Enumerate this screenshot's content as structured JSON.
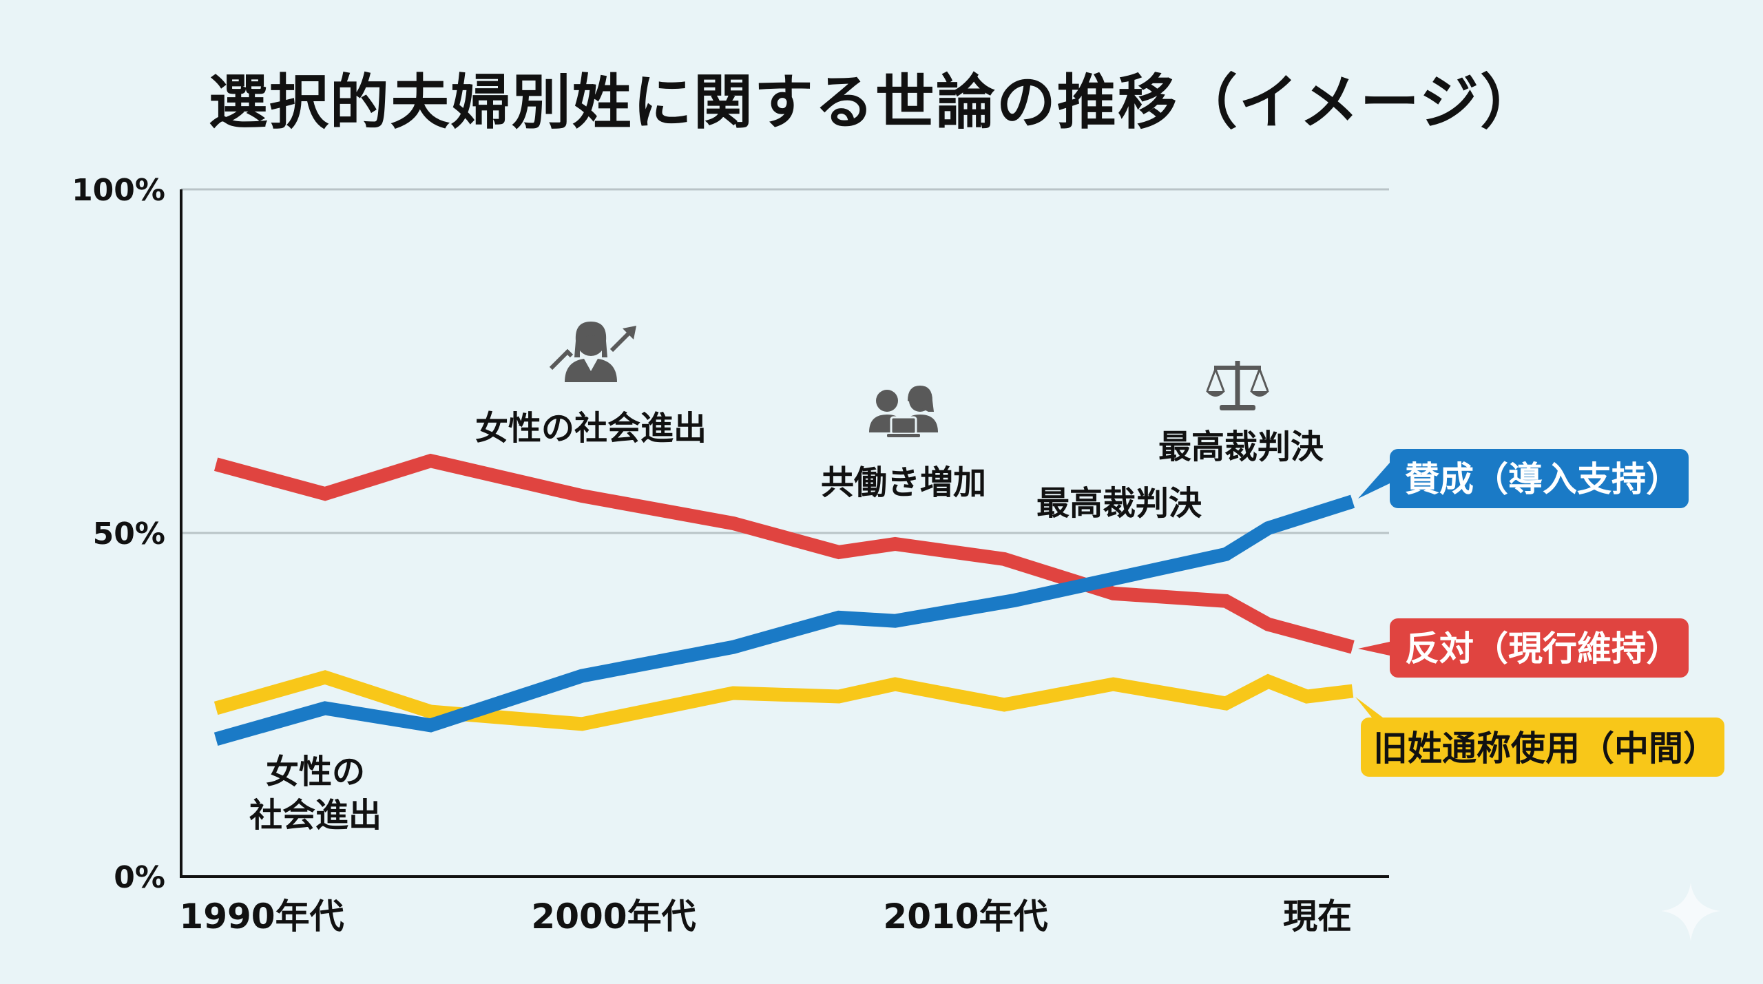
{
  "title": "選択的夫婦別姓に関する世論の推移（イメージ）",
  "chart_data": {
    "type": "line",
    "title": "選択的夫婦別姓に関する世論の推移（イメージ）",
    "xlabel": "",
    "ylabel": "",
    "ylim": [
      0,
      100
    ],
    "yticks": [
      {
        "value": 100,
        "label": "100%"
      },
      {
        "value": 50,
        "label": "50%"
      },
      {
        "value": 0,
        "label": "0%"
      }
    ],
    "categories": [
      "1990年代",
      "2000年代",
      "2010年代",
      "現在"
    ],
    "category_positions": [
      0,
      1,
      2,
      3
    ],
    "xlim": [
      -0.23,
      3.21
    ],
    "gridlines": [
      100,
      50
    ],
    "grid": true,
    "legend": "right (callout labels at line ends)",
    "series": [
      {
        "name": "賛成（導入支持）",
        "color": "#1a7ac6",
        "label_text_color": "#ffffff",
        "x": [
          -0.13,
          0.18,
          0.48,
          0.91,
          1.34,
          1.64,
          1.8,
          2.14,
          2.74,
          2.86,
          3.1
        ],
        "values": [
          20,
          24.5,
          22,
          29.2,
          33.4,
          37.7,
          37.2,
          40.2,
          46.9,
          50.7,
          54.6
        ]
      },
      {
        "name": "反対（現行維持）",
        "color": "#e04440",
        "label_text_color": "#ffffff",
        "x": [
          -0.13,
          0.18,
          0.48,
          0.91,
          1.34,
          1.64,
          1.8,
          2.11,
          2.42,
          2.74,
          2.86,
          3.1
        ],
        "values": [
          60,
          55.7,
          60.5,
          55.4,
          51.4,
          47.2,
          48.4,
          46.2,
          41.2,
          40.1,
          36.7,
          33.4
        ]
      },
      {
        "name": "旧姓通称使用（中間）",
        "color": "#f8c719",
        "label_text_color": "#111111",
        "x": [
          -0.13,
          0.18,
          0.48,
          0.91,
          1.34,
          1.64,
          1.8,
          2.11,
          2.42,
          2.74,
          2.86,
          2.97,
          3.1
        ],
        "values": [
          24.5,
          29,
          24,
          22.2,
          26.7,
          26.2,
          28,
          25,
          28,
          25.2,
          28.4,
          26.2,
          27
        ]
      }
    ],
    "annotations": [
      {
        "text": "女性の社会進出",
        "icon": "businesswoman-growth-icon",
        "x": 0.93
      },
      {
        "text": "共働き増加",
        "icon": "working-couple-laptop-icon",
        "x": 1.82
      },
      {
        "text": "最高裁判決",
        "icon": "scales-of-justice-icon",
        "x": 2.78
      },
      {
        "text": "最高裁判決",
        "icon": null,
        "x": 2.44
      },
      {
        "text": [
          "女性の",
          "社会進出"
        ],
        "icon": null,
        "x": 0.15
      }
    ]
  }
}
